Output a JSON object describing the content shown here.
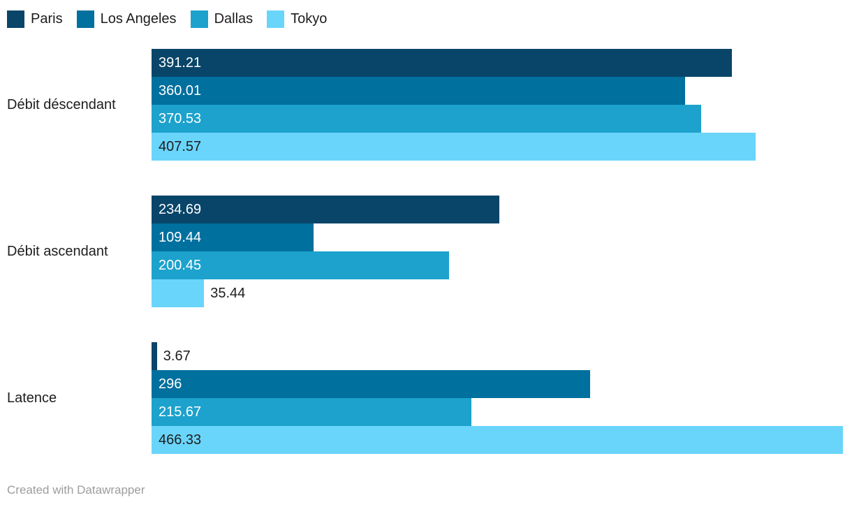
{
  "chart_data": {
    "type": "bar",
    "orientation": "horizontal",
    "title": "",
    "xlabel": "",
    "ylabel": "",
    "xlim": [
      0,
      466.33
    ],
    "grid": false,
    "legend_position": "top",
    "categories": [
      "Débit déscendant",
      "Débit ascendant",
      "Latence"
    ],
    "series": [
      {
        "name": "Paris",
        "color": "#094569",
        "label_color_inside": "#ffffff",
        "values": [
          391.21,
          234.69,
          3.67
        ],
        "labels": [
          "391.21",
          "234.69",
          "3.67"
        ]
      },
      {
        "name": "Los Angeles",
        "color": "#00709e",
        "label_color_inside": "#ffffff",
        "values": [
          360.01,
          109.44,
          296
        ],
        "labels": [
          "360.01",
          "109.44",
          "296"
        ]
      },
      {
        "name": "Dallas",
        "color": "#1ca2cc",
        "label_color_inside": "#ffffff",
        "values": [
          370.53,
          200.45,
          215.67
        ],
        "labels": [
          "370.53",
          "200.45",
          "215.67"
        ]
      },
      {
        "name": "Tokyo",
        "color": "#6ad5fb",
        "label_color_inside": "#1d1d1d",
        "values": [
          407.57,
          35.44,
          466.33
        ],
        "labels": [
          "407.57",
          "35.44",
          "466.33"
        ]
      }
    ],
    "label_color_outside": "#1d1d1d"
  },
  "footer": {
    "credit": "Created with Datawrapper"
  }
}
